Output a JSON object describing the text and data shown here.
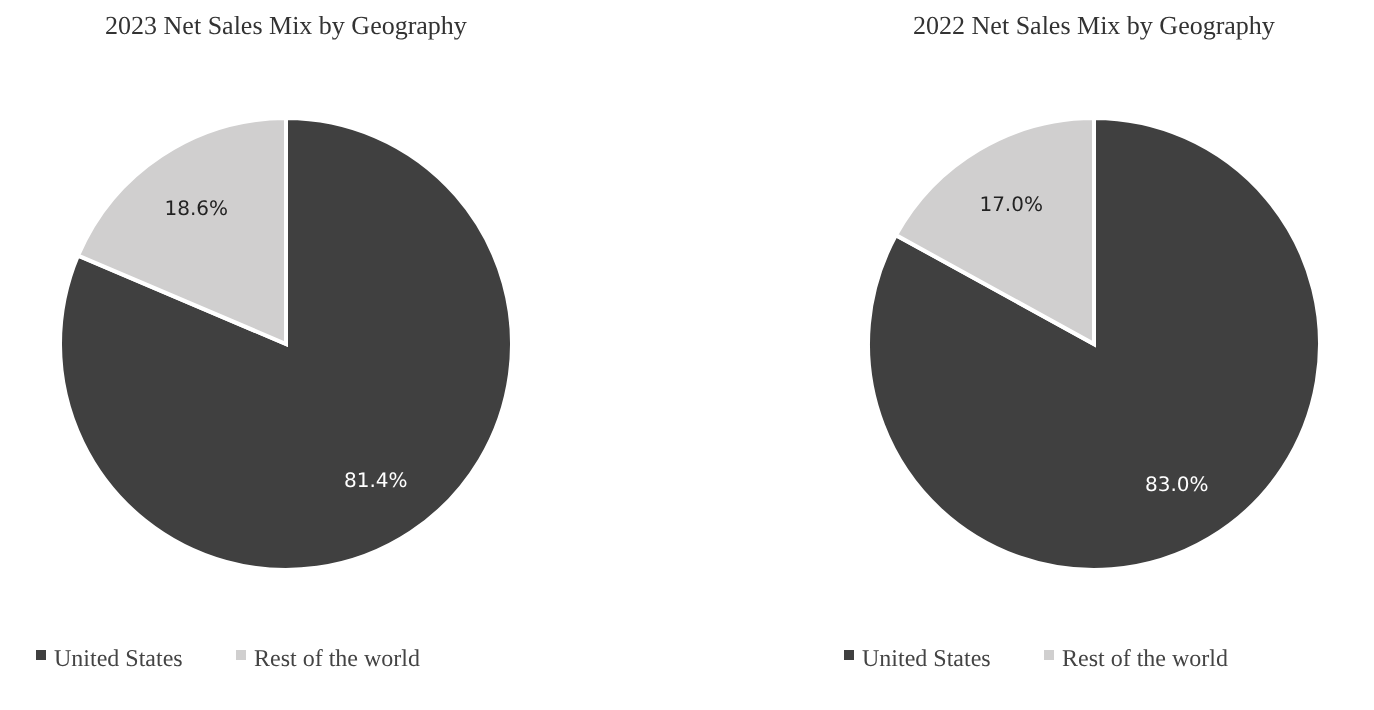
{
  "chart_data": [
    {
      "type": "pie",
      "title": "2023 Net Sales Mix by Geography",
      "categories": [
        "United States",
        "Rest of the world"
      ],
      "values": [
        81.4,
        18.6
      ],
      "colors": [
        "#404040",
        "#d0cfcf"
      ],
      "value_labels": [
        "81.4%",
        "18.6%"
      ],
      "legend": "bottom"
    },
    {
      "type": "pie",
      "title": "2022 Net Sales Mix by Geography",
      "categories": [
        "United States",
        "Rest of the world"
      ],
      "values": [
        83.0,
        17.0
      ],
      "colors": [
        "#404040",
        "#d0cfcf"
      ],
      "value_labels": [
        "83.0%",
        "17.0%"
      ],
      "legend": "bottom"
    }
  ]
}
